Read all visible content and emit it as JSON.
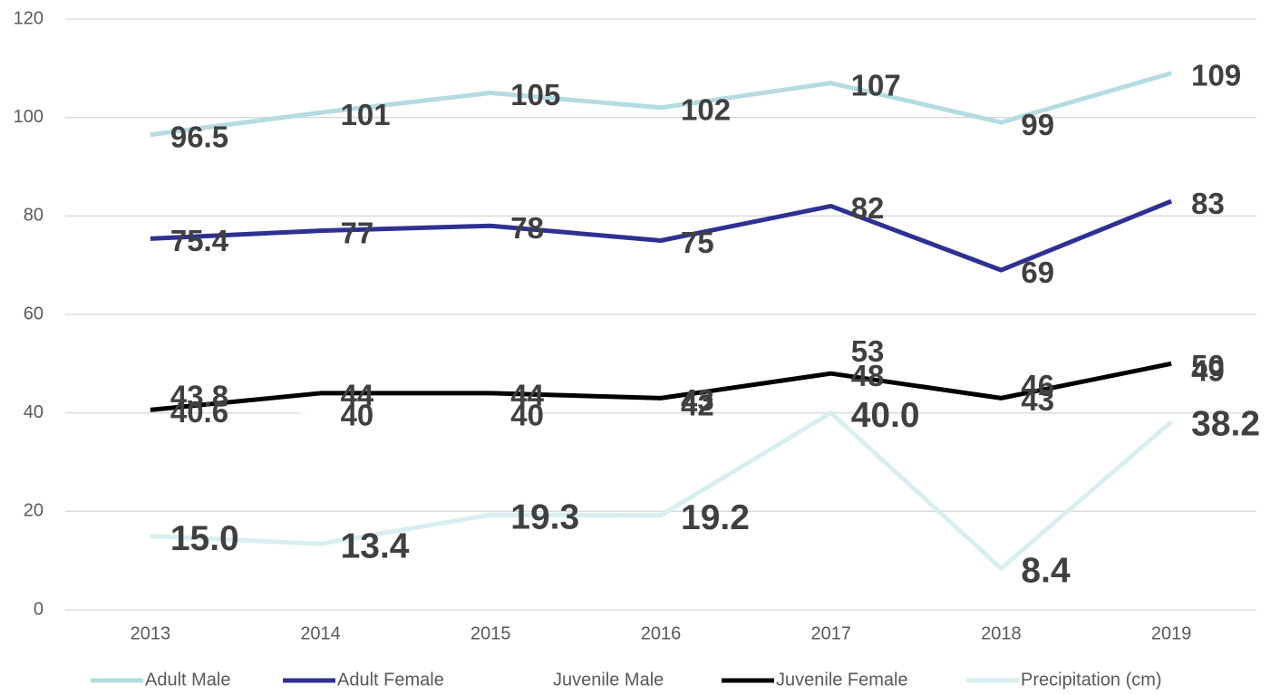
{
  "chart_data": {
    "type": "line",
    "categories": [
      "2013",
      "2014",
      "2015",
      "2016",
      "2017",
      "2018",
      "2019"
    ],
    "series": [
      {
        "name": "Adult Male",
        "color": "#b4dce2",
        "values": [
          96.5,
          101,
          105,
          102,
          107,
          99,
          109
        ]
      },
      {
        "name": "Adult Female",
        "color": "#2e3192",
        "values": [
          75.4,
          77,
          78,
          75,
          82,
          69,
          83
        ]
      },
      {
        "name": "Juvenile Male",
        "color": "#ffffff",
        "values": [
          43.8,
          40,
          40,
          42,
          53,
          46,
          49
        ]
      },
      {
        "name": "Juvenile Female",
        "color": "#000000",
        "values": [
          40.6,
          44,
          44,
          43,
          48,
          43,
          50
        ]
      },
      {
        "name": "Precipitation (cm)",
        "color": "#d8eef1",
        "values": [
          15.0,
          13.4,
          19.3,
          19.2,
          40.0,
          8.4,
          38.2
        ],
        "value_labels": [
          "15.0",
          "13.4",
          "19.3",
          "19.2",
          "40.0",
          "8.4",
          "38.2"
        ]
      }
    ],
    "ylim": [
      0,
      120
    ],
    "yticks": [
      0,
      20,
      40,
      60,
      80,
      100,
      120
    ],
    "grid": true,
    "legend": "bottom"
  }
}
